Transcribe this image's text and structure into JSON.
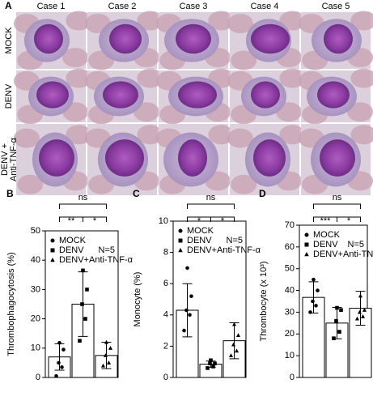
{
  "panel_a": {
    "label": "A",
    "columns": [
      "Case 1",
      "Case 2",
      "Case 3",
      "Case 4",
      "Case 5"
    ],
    "rows": [
      "MOCK",
      "DENV",
      "DENV +",
      "Anti-TNF-α"
    ]
  },
  "chart_data": [
    {
      "type": "bar",
      "label": "B",
      "y_label": "Thrombophagocytosis (%)",
      "categories": [
        "MOCK",
        "DENV",
        "DENV+Anti-TNF-α"
      ],
      "markers": [
        "circle",
        "square",
        "triangle"
      ],
      "values": [
        7,
        25,
        7.5
      ],
      "errors": [
        4.5,
        11,
        4.5
      ],
      "points": [
        [
          0.5,
          3.5,
          5,
          9.5,
          11.8
        ],
        [
          12.5,
          20,
          25,
          30,
          36.5
        ],
        [
          4,
          5,
          7.5,
          10,
          12
        ]
      ],
      "annotation": "N=5",
      "significance": [
        {
          "groups": [
            0,
            1
          ],
          "label": "**"
        },
        {
          "groups": [
            1,
            2
          ],
          "label": "*"
        },
        {
          "groups": [
            0,
            2
          ],
          "label": "ns"
        }
      ],
      "ylim": [
        0,
        50
      ],
      "yticks": [
        0,
        10,
        20,
        30,
        40,
        50
      ]
    },
    {
      "type": "bar",
      "label": "C",
      "y_label": "Monocyte (%)",
      "categories": [
        "MOCK",
        "DENV",
        "DENV+Anti-TNF-α"
      ],
      "markers": [
        "circle",
        "square",
        "triangle"
      ],
      "values": [
        4.3,
        0.85,
        2.35
      ],
      "errors": [
        1.7,
        0.2,
        1.15
      ],
      "points": [
        [
          3,
          4,
          4.3,
          5.2,
          7
        ],
        [
          0.6,
          0.7,
          0.9,
          0.9,
          1.1
        ],
        [
          1.4,
          1.7,
          2.1,
          2.7,
          3.4
        ]
      ],
      "annotation": "N=5",
      "significance": [
        {
          "groups": [
            0,
            1
          ],
          "label": "*"
        },
        {
          "groups": [
            1,
            2
          ],
          "label": "*"
        },
        {
          "groups": [
            0,
            2
          ],
          "label": "ns"
        }
      ],
      "ylim": [
        0,
        10
      ],
      "yticks": [
        0,
        2,
        4,
        6,
        8,
        10
      ]
    },
    {
      "type": "bar",
      "label": "D",
      "y_label": "Thrombocyte (x 10³)",
      "categories": [
        "MOCK",
        "DENV",
        "DENV+Anti-TNF-α"
      ],
      "markers": [
        "circle",
        "square",
        "triangle"
      ],
      "values": [
        36.8,
        25,
        31.8
      ],
      "errors": [
        7.2,
        7.2,
        7.8
      ],
      "points": [
        [
          30,
          33,
          35,
          40,
          45
        ],
        [
          18,
          21,
          26,
          31,
          32
        ],
        [
          27,
          28,
          30,
          31,
          37.5
        ]
      ],
      "annotation": "N=5",
      "significance": [
        {
          "groups": [
            0,
            1
          ],
          "label": "***"
        },
        {
          "groups": [
            1,
            2
          ],
          "label": "*"
        },
        {
          "groups": [
            0,
            2
          ],
          "label": "ns"
        }
      ],
      "ylim": [
        0,
        70
      ],
      "yticks": [
        0,
        10,
        20,
        30,
        40,
        50,
        60,
        70
      ]
    }
  ]
}
